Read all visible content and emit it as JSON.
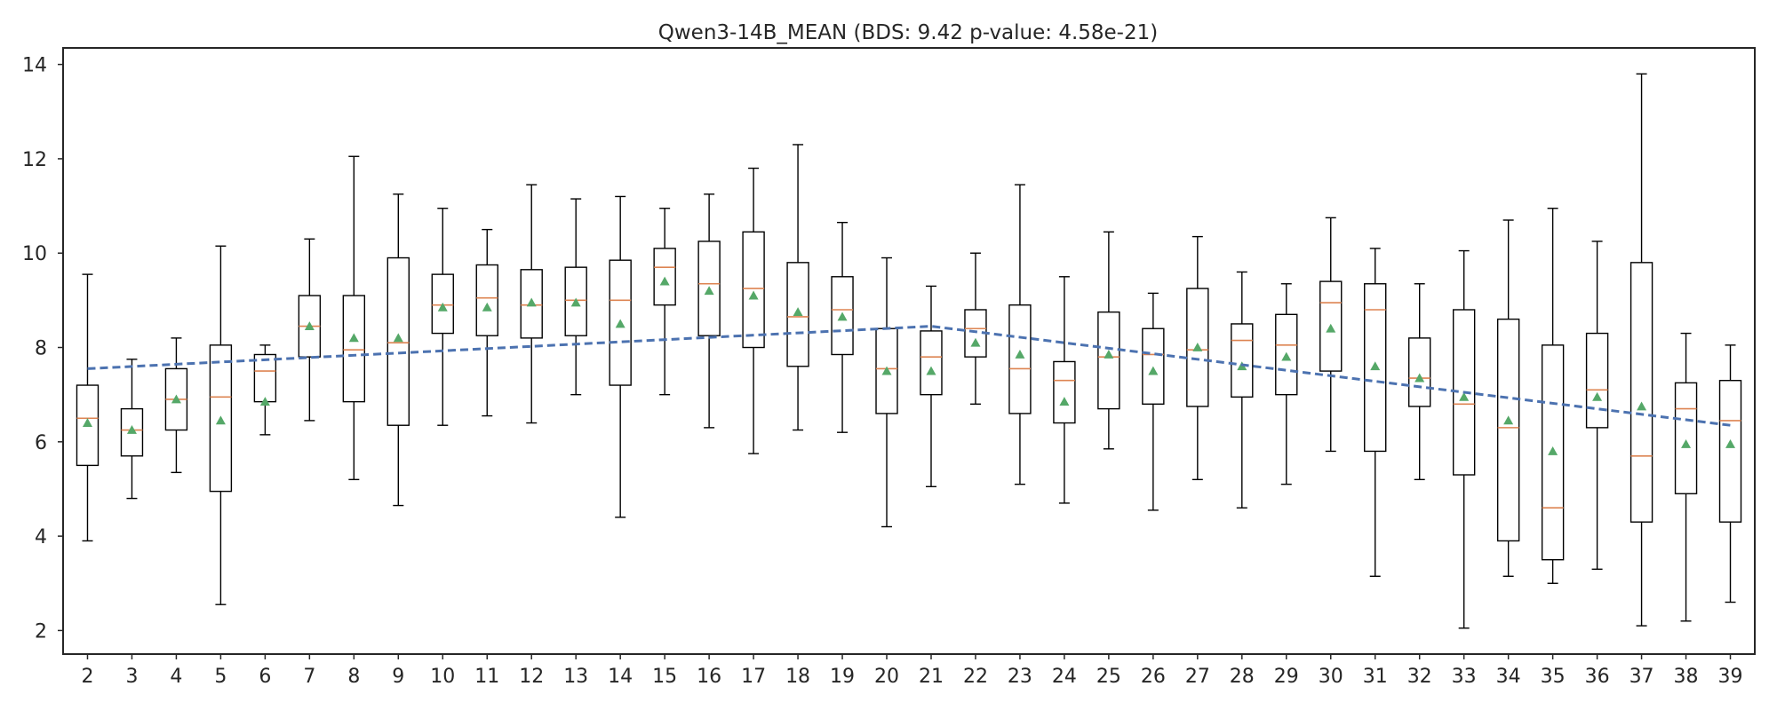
{
  "chart_data": {
    "type": "boxplot",
    "title": "Qwen3-14B_MEAN (BDS: 9.42 p-value: 4.58e-21)",
    "xlabel": "",
    "ylabel": "",
    "ylim": [
      1.5,
      14.35
    ],
    "yticks": [
      2,
      4,
      6,
      8,
      10,
      12,
      14
    ],
    "grid": false,
    "colors": {
      "box": "#000000",
      "median": "#dd8452",
      "mean_marker": "#55a868",
      "trend_line": "#4c72b0"
    },
    "categories": [
      "2",
      "3",
      "4",
      "5",
      "6",
      "7",
      "8",
      "9",
      "10",
      "11",
      "12",
      "13",
      "14",
      "15",
      "16",
      "17",
      "18",
      "19",
      "20",
      "21",
      "22",
      "23",
      "24",
      "25",
      "26",
      "27",
      "28",
      "29",
      "30",
      "31",
      "32",
      "33",
      "34",
      "35",
      "36",
      "37",
      "38",
      "39"
    ],
    "boxes": [
      {
        "min": 3.9,
        "q1": 5.5,
        "median": 6.5,
        "q3": 7.2,
        "max": 9.55,
        "mean": 6.4
      },
      {
        "min": 4.8,
        "q1": 5.7,
        "median": 6.25,
        "q3": 6.7,
        "max": 7.75,
        "mean": 6.25
      },
      {
        "min": 5.35,
        "q1": 6.25,
        "median": 6.9,
        "q3": 7.55,
        "max": 8.2,
        "mean": 6.9
      },
      {
        "min": 2.55,
        "q1": 4.95,
        "median": 6.95,
        "q3": 8.05,
        "max": 10.15,
        "mean": 6.45
      },
      {
        "min": 6.15,
        "q1": 6.85,
        "median": 7.5,
        "q3": 7.85,
        "max": 8.05,
        "mean": 6.85
      },
      {
        "min": 6.45,
        "q1": 7.8,
        "median": 8.45,
        "q3": 9.1,
        "max": 10.3,
        "mean": 8.45
      },
      {
        "min": 5.2,
        "q1": 6.85,
        "median": 7.95,
        "q3": 9.1,
        "max": 12.05,
        "mean": 8.2
      },
      {
        "min": 4.65,
        "q1": 6.35,
        "median": 8.1,
        "q3": 9.9,
        "max": 11.25,
        "mean": 8.2
      },
      {
        "min": 6.35,
        "q1": 8.3,
        "median": 8.9,
        "q3": 9.55,
        "max": 10.95,
        "mean": 8.85
      },
      {
        "min": 6.55,
        "q1": 8.25,
        "median": 9.05,
        "q3": 9.75,
        "max": 10.5,
        "mean": 8.85
      },
      {
        "min": 6.4,
        "q1": 8.2,
        "median": 8.9,
        "q3": 9.65,
        "max": 11.45,
        "mean": 8.95
      },
      {
        "min": 7.0,
        "q1": 8.25,
        "median": 9.0,
        "q3": 9.7,
        "max": 11.15,
        "mean": 8.95
      },
      {
        "min": 4.4,
        "q1": 7.2,
        "median": 9.0,
        "q3": 9.85,
        "max": 11.2,
        "mean": 8.5
      },
      {
        "min": 7.0,
        "q1": 8.9,
        "median": 9.7,
        "q3": 10.1,
        "max": 10.95,
        "mean": 9.4
      },
      {
        "min": 6.3,
        "q1": 8.25,
        "median": 9.35,
        "q3": 10.25,
        "max": 11.25,
        "mean": 9.2
      },
      {
        "min": 5.75,
        "q1": 8.0,
        "median": 9.25,
        "q3": 10.45,
        "max": 11.8,
        "mean": 9.1
      },
      {
        "min": 6.25,
        "q1": 7.6,
        "median": 8.65,
        "q3": 9.8,
        "max": 12.3,
        "mean": 8.75
      },
      {
        "min": 6.2,
        "q1": 7.85,
        "median": 8.8,
        "q3": 9.5,
        "max": 10.65,
        "mean": 8.65
      },
      {
        "min": 4.2,
        "q1": 6.6,
        "median": 7.55,
        "q3": 8.4,
        "max": 9.9,
        "mean": 7.5
      },
      {
        "min": 5.05,
        "q1": 7.0,
        "median": 7.8,
        "q3": 8.35,
        "max": 9.3,
        "mean": 7.5
      },
      {
        "min": 6.8,
        "q1": 7.8,
        "median": 8.4,
        "q3": 8.8,
        "max": 10.0,
        "mean": 8.1
      },
      {
        "min": 5.1,
        "q1": 6.6,
        "median": 7.55,
        "q3": 8.9,
        "max": 11.45,
        "mean": 7.85
      },
      {
        "min": 4.7,
        "q1": 6.4,
        "median": 7.3,
        "q3": 7.7,
        "max": 9.5,
        "mean": 6.85
      },
      {
        "min": 5.85,
        "q1": 6.7,
        "median": 7.8,
        "q3": 8.75,
        "max": 10.45,
        "mean": 7.85
      },
      {
        "min": 4.55,
        "q1": 6.8,
        "median": 7.85,
        "q3": 8.4,
        "max": 9.15,
        "mean": 7.5
      },
      {
        "min": 5.2,
        "q1": 6.75,
        "median": 7.95,
        "q3": 9.25,
        "max": 10.35,
        "mean": 8.0
      },
      {
        "min": 4.6,
        "q1": 6.95,
        "median": 8.15,
        "q3": 8.5,
        "max": 9.6,
        "mean": 7.6
      },
      {
        "min": 5.1,
        "q1": 7.0,
        "median": 8.05,
        "q3": 8.7,
        "max": 9.35,
        "mean": 7.8
      },
      {
        "min": 5.8,
        "q1": 7.5,
        "median": 8.95,
        "q3": 9.4,
        "max": 10.75,
        "mean": 8.4
      },
      {
        "min": 3.15,
        "q1": 5.8,
        "median": 8.8,
        "q3": 9.35,
        "max": 10.1,
        "mean": 7.6
      },
      {
        "min": 5.2,
        "q1": 6.75,
        "median": 7.35,
        "q3": 8.2,
        "max": 9.35,
        "mean": 7.35
      },
      {
        "min": 2.05,
        "q1": 5.3,
        "median": 6.8,
        "q3": 8.8,
        "max": 10.05,
        "mean": 6.95
      },
      {
        "min": 3.15,
        "q1": 3.9,
        "median": 6.3,
        "q3": 8.6,
        "max": 10.7,
        "mean": 6.45
      },
      {
        "min": 3.0,
        "q1": 3.5,
        "median": 4.6,
        "q3": 8.05,
        "max": 10.95,
        "mean": 5.8
      },
      {
        "min": 3.3,
        "q1": 6.3,
        "median": 7.1,
        "q3": 8.3,
        "max": 10.25,
        "mean": 6.95
      },
      {
        "min": 2.1,
        "q1": 4.3,
        "median": 5.7,
        "q3": 9.8,
        "max": 13.8,
        "mean": 6.75
      },
      {
        "min": 2.2,
        "q1": 4.9,
        "median": 6.7,
        "q3": 7.25,
        "max": 8.3,
        "mean": 5.95
      },
      {
        "min": 2.6,
        "q1": 4.3,
        "median": 6.45,
        "q3": 7.3,
        "max": 8.05,
        "mean": 5.95
      }
    ],
    "trend_line": {
      "points": [
        {
          "x": "2",
          "y": 7.55
        },
        {
          "x": "21",
          "y": 8.45
        },
        {
          "x": "39",
          "y": 6.35
        }
      ]
    }
  }
}
